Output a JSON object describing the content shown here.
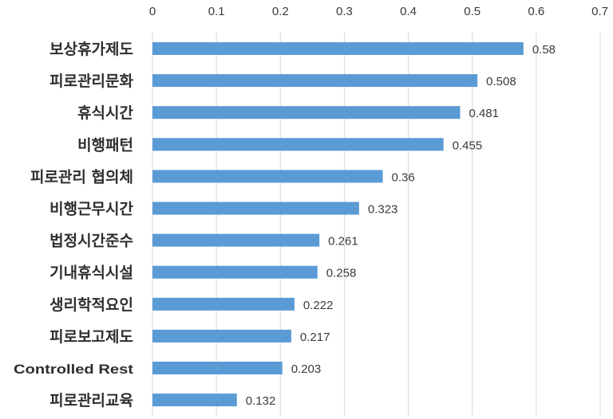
{
  "chart_data": {
    "type": "bar",
    "orientation": "horizontal",
    "title": "",
    "xlabel": "",
    "ylabel": "",
    "xlim": [
      0,
      0.7
    ],
    "x_ticks": [
      "0",
      "0.1",
      "0.2",
      "0.3",
      "0.4",
      "0.5",
      "0.6",
      "0.7"
    ],
    "x_axis_position": "top",
    "grid": true,
    "legend": "none",
    "bar_color": "#5b9bd5",
    "categories": [
      "보상휴가제도",
      "피로관리문화",
      "휴식시간",
      "비행패턴",
      "피로관리 협의체",
      "비행근무시간",
      "법정시간준수",
      "기내휴식시설",
      "생리학적요인",
      "피로보고제도",
      "Controlled Rest",
      "피로관리교육"
    ],
    "values": [
      0.58,
      0.508,
      0.481,
      0.455,
      0.36,
      0.323,
      0.261,
      0.258,
      0.222,
      0.217,
      0.203,
      0.132
    ],
    "value_labels": [
      "0.58",
      "0.508",
      "0.481",
      "0.455",
      "0.36",
      "0.323",
      "0.261",
      "0.258",
      "0.222",
      "0.217",
      "0.203",
      "0.132"
    ]
  }
}
